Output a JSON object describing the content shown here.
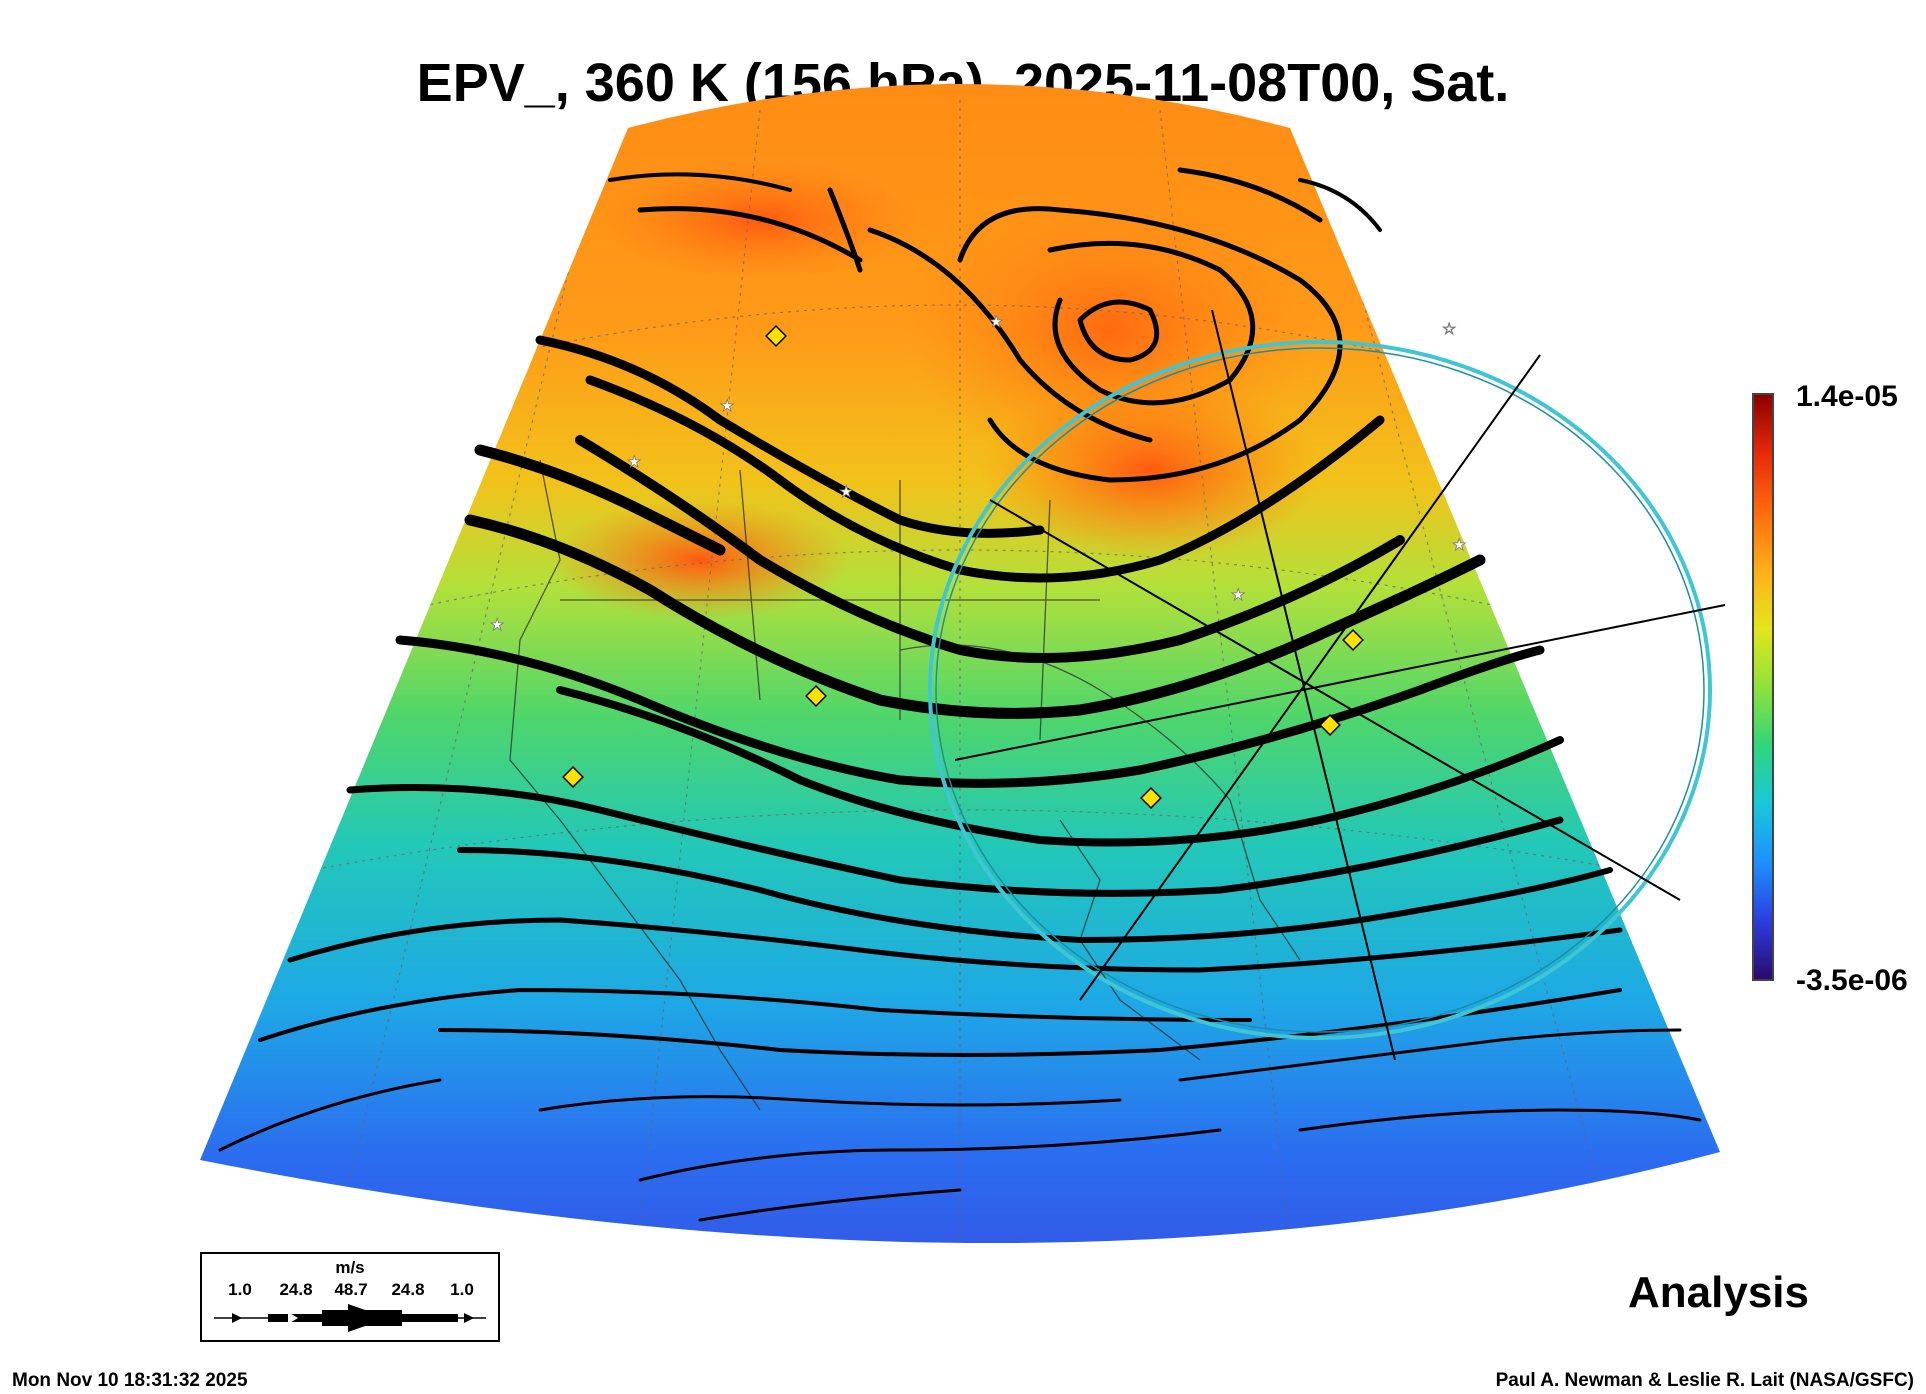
{
  "title": "EPV_, 360 K (156 hPa), 2025-11-08T00, Sat.",
  "colorbar": {
    "max_label": "1.4e-05",
    "min_label": "-3.5e-06",
    "colors": [
      "#2a0a6e",
      "#2b3ee0",
      "#1e90ff",
      "#18c8d8",
      "#2fd67a",
      "#8fe23a",
      "#e3e61a",
      "#ffae1a",
      "#ff6a0e",
      "#e62a0a",
      "#8b0000"
    ]
  },
  "legend": {
    "unit": "m/s",
    "ticks": [
      "1.0",
      "24.8",
      "48.7",
      "24.8",
      "1.0"
    ]
  },
  "product_label": "Analysis",
  "timestamp": "Mon Nov 10 18:31:32 2025",
  "credit": "Paul A. Newman & Leslie R. Lait (NASA/GSFC)",
  "range_ring_color": "#3fc6d2"
}
